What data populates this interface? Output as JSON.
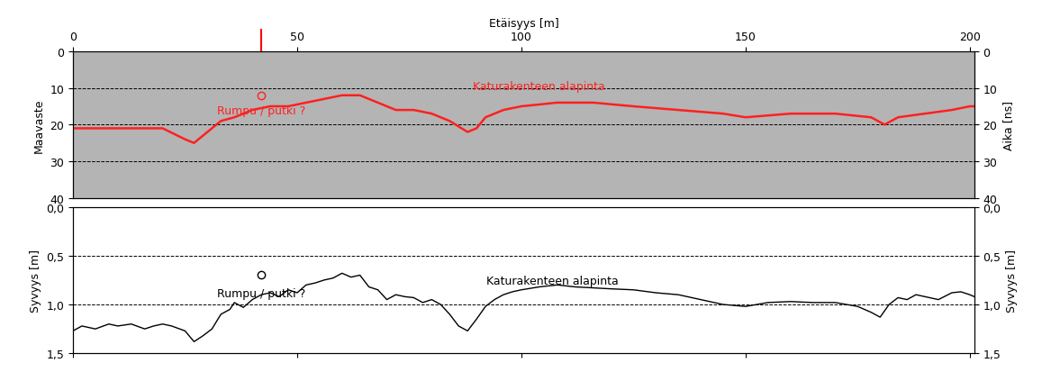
{
  "chart_data": [
    {
      "type": "line",
      "x_label": "Etäisyys [m]",
      "y_label": "Maavaste",
      "y2_label": "Aika [ns]",
      "xlim": [
        0,
        201
      ],
      "xticks": [
        0,
        50,
        100,
        150,
        200
      ],
      "ylim": [
        40,
        0
      ],
      "yticks": [
        0,
        10,
        20,
        30,
        40
      ],
      "y2lim": [
        40,
        0
      ],
      "y2ticks": [
        0,
        10,
        20,
        30,
        40
      ],
      "grid": true,
      "tick_labels": true,
      "color": "#ff2020",
      "series": [
        {
          "color": "#ff2020",
          "x": [
            0,
            5,
            10,
            15,
            20,
            25,
            27,
            30,
            33,
            36,
            40,
            44,
            48,
            52,
            56,
            60,
            64,
            68,
            72,
            76,
            80,
            84,
            88,
            90,
            92,
            96,
            100,
            108,
            116,
            125,
            135,
            145,
            150,
            160,
            170,
            178,
            181,
            184,
            190,
            196,
            200,
            201
          ],
          "values": [
            21,
            21,
            21,
            21,
            21,
            24,
            25,
            22,
            19,
            18,
            16,
            15,
            15,
            14,
            13,
            12,
            12,
            14,
            16,
            16,
            17,
            19,
            22,
            21,
            18,
            16,
            15,
            14,
            14,
            15,
            16,
            17,
            18,
            17,
            17,
            18,
            20,
            18,
            17,
            16,
            15,
            15
          ]
        }
      ],
      "annotations": [
        {
          "text": "Katurakenteen alapinta",
          "x": 104,
          "y": 9.5
        },
        {
          "text": "Rumpu / putki ?",
          "x": 42,
          "y": 16,
          "point_x": 42,
          "point_y": 12,
          "marker": "circle"
        }
      ]
    },
    {
      "type": "line",
      "y_label": "Syvyys [m]",
      "y2_label": "Syvyys [m]",
      "xlim": [
        0,
        201
      ],
      "xticks": [
        0,
        50,
        100,
        150,
        200
      ],
      "ylim": [
        1.5,
        0
      ],
      "yticks": [
        {
          "value": 0,
          "label": "0,0"
        },
        {
          "value": 0.5,
          "label": "0,5"
        },
        {
          "value": 1.0,
          "label": "1,0"
        },
        {
          "value": 1.5,
          "label": "1,5"
        }
      ],
      "y2lim": [
        1.5,
        0
      ],
      "y2ticks": [
        {
          "value": 0,
          "label": "0,0"
        },
        {
          "value": 0.5,
          "label": "0,5"
        },
        {
          "value": 1.0,
          "label": "1,0"
        },
        {
          "value": 1.5,
          "label": "1,5"
        }
      ],
      "grid": true,
      "tick_labels": "y",
      "color": "#000000",
      "series": [
        {
          "color": "#000000",
          "x": [
            0,
            2,
            5,
            8,
            10,
            13,
            16,
            18,
            20,
            22,
            25,
            27,
            29,
            31,
            33,
            35,
            36,
            38,
            40,
            42,
            44,
            46,
            48,
            50,
            52,
            54,
            56,
            58,
            60,
            62,
            64,
            66,
            68,
            70,
            72,
            74,
            76,
            78,
            80,
            82,
            84,
            86,
            88,
            90,
            92,
            94,
            96,
            98,
            100,
            104,
            108,
            112,
            116,
            120,
            125,
            130,
            135,
            140,
            145,
            150,
            155,
            160,
            165,
            170,
            175,
            178,
            180,
            182,
            184,
            186,
            188,
            190,
            193,
            196,
            198,
            200,
            201
          ],
          "values": [
            1.27,
            1.22,
            1.25,
            1.2,
            1.22,
            1.2,
            1.25,
            1.22,
            1.2,
            1.22,
            1.27,
            1.38,
            1.32,
            1.25,
            1.1,
            1.05,
            0.98,
            1.03,
            0.95,
            0.9,
            0.88,
            0.92,
            0.85,
            0.88,
            0.8,
            0.78,
            0.75,
            0.73,
            0.68,
            0.72,
            0.7,
            0.82,
            0.85,
            0.95,
            0.9,
            0.92,
            0.93,
            0.98,
            0.95,
            1.0,
            1.1,
            1.22,
            1.27,
            1.15,
            1.02,
            0.95,
            0.9,
            0.87,
            0.85,
            0.82,
            0.8,
            0.82,
            0.83,
            0.84,
            0.85,
            0.88,
            0.9,
            0.95,
            1.0,
            1.02,
            0.98,
            0.97,
            0.98,
            0.98,
            1.02,
            1.08,
            1.13,
            1.0,
            0.93,
            0.95,
            0.9,
            0.92,
            0.95,
            0.88,
            0.87,
            0.9,
            0.92
          ]
        }
      ],
      "annotations": [
        {
          "text": "Katurakenteen alapinta",
          "x": 107,
          "y": 0.76
        },
        {
          "text": "Rumpu / putki ?",
          "x": 42,
          "y": 0.88,
          "point_x": 42,
          "point_y": 0.7,
          "marker": "circle"
        }
      ]
    }
  ]
}
